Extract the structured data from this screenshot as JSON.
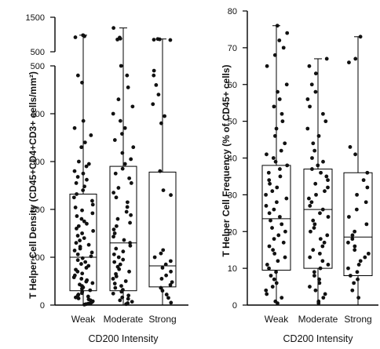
{
  "chart_data": [
    {
      "type": "box",
      "ylabel": "T Helper Cell Density (CD45+CD4+CD3+ cells/mm²)",
      "xlabel": "CD200 Intensity",
      "categories": [
        "Weak",
        "Moderate",
        "Strong"
      ],
      "broken_axis": true,
      "ylim": [
        0,
        500
      ],
      "upper_ylim": [
        500,
        1500
      ],
      "yticks": [
        "0",
        "100",
        "200",
        "300",
        "400",
        "500"
      ],
      "upper_yticks": [
        "500",
        "1500"
      ],
      "series": [
        {
          "stats": {
            "min": 0,
            "q1": 30,
            "median": 100,
            "q3": 232,
            "max": 980
          },
          "points": [
            980,
            950,
            920,
            480,
            465,
            385,
            370,
            355,
            340,
            330,
            300,
            295,
            290,
            280,
            275,
            268,
            262,
            255,
            248,
            240,
            232,
            225,
            218,
            210,
            204,
            198,
            192,
            186,
            180,
            175,
            170,
            165,
            160,
            155,
            150,
            145,
            140,
            135,
            130,
            126,
            122,
            118,
            114,
            110,
            106,
            102,
            98,
            94,
            90,
            86,
            82,
            78,
            74,
            70,
            66,
            62,
            58,
            55,
            52,
            49,
            46,
            43,
            40,
            37,
            34,
            31,
            28,
            25,
            22,
            20,
            18,
            16,
            14,
            12,
            10,
            8,
            6,
            4,
            3,
            2,
            1
          ]
        },
        {
          "stats": {
            "min": 0,
            "q1": 30,
            "median": 130,
            "q3": 290,
            "max": 1190
          },
          "points": [
            1190,
            910,
            880,
            855,
            500,
            480,
            455,
            430,
            415,
            400,
            385,
            370,
            358,
            345,
            330,
            318,
            305,
            295,
            285,
            275,
            265,
            255,
            245,
            235,
            225,
            215,
            205,
            195,
            188,
            180,
            172,
            165,
            158,
            150,
            143,
            136,
            130,
            124,
            118,
            112,
            106,
            100,
            95,
            90,
            85,
            80,
            75,
            70,
            65,
            60,
            55,
            50,
            45,
            40,
            36,
            32,
            28,
            24,
            20,
            16,
            13,
            10,
            7,
            4,
            2
          ]
        },
        {
          "stats": {
            "min": 0,
            "q1": 38,
            "median": 82,
            "q3": 278,
            "max": 870
          },
          "points": [
            870,
            860,
            850,
            840,
            490,
            480,
            460,
            440,
            420,
            395,
            380,
            280,
            240,
            230,
            115,
            108,
            100,
            92,
            85,
            78,
            70,
            62,
            55,
            48,
            42,
            36,
            30,
            22,
            15,
            5
          ]
        }
      ]
    },
    {
      "type": "box",
      "ylabel": "T Helper Cell Frequency (% of CD45+ cells)",
      "xlabel": "CD200 Intensity",
      "categories": [
        "Weak",
        "Moderate",
        "Strong"
      ],
      "ylim": [
        0,
        80
      ],
      "yticks": [
        "0",
        "10",
        "20",
        "30",
        "40",
        "50",
        "60",
        "70",
        "80"
      ],
      "series": [
        {
          "stats": {
            "min": 0,
            "q1": 9.5,
            "median": 23.5,
            "q3": 38,
            "max": 76
          },
          "points": [
            76,
            74,
            72,
            70,
            68,
            65,
            60,
            58,
            56,
            54,
            52,
            50,
            48,
            46,
            44,
            42,
            41,
            40,
            39,
            38,
            37,
            36,
            35,
            34,
            33,
            32,
            31,
            30,
            29,
            28,
            27,
            26,
            25,
            24,
            23,
            22,
            21,
            20,
            19,
            18,
            17,
            16,
            15,
            14,
            13,
            12,
            11,
            10,
            9,
            8,
            7,
            6,
            5,
            4,
            3,
            2,
            1,
            0.5
          ]
        },
        {
          "stats": {
            "min": 0,
            "q1": 10,
            "median": 26,
            "q3": 37,
            "max": 67
          },
          "points": [
            67,
            65,
            63,
            60,
            58,
            56,
            54,
            52,
            50,
            48,
            46,
            44,
            42,
            40,
            39,
            38,
            37,
            36,
            35,
            34,
            33,
            32,
            31,
            30,
            29,
            28,
            27,
            26,
            25,
            24,
            23,
            22,
            21,
            20,
            19,
            18,
            17,
            16,
            15,
            14,
            13,
            12,
            11,
            10,
            9,
            8,
            7,
            6,
            5,
            4,
            3,
            2,
            1,
            0.5
          ]
        },
        {
          "stats": {
            "min": 0,
            "q1": 8,
            "median": 18.5,
            "q3": 36,
            "max": 73
          },
          "points": [
            73,
            67,
            66,
            43,
            41,
            36,
            34,
            32,
            30,
            28,
            26,
            24,
            22,
            20,
            19,
            18,
            17,
            16,
            15,
            14,
            13,
            12,
            11,
            10,
            9,
            8,
            7,
            6,
            4,
            2
          ]
        }
      ]
    }
  ]
}
